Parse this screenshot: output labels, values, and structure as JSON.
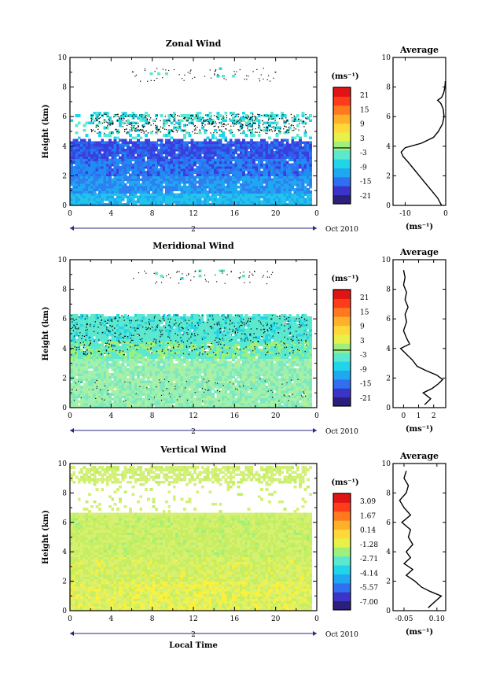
{
  "date_label": "Oct 2010",
  "day_marker": "2",
  "bottom_xlabel": "Local Time",
  "y_label": "Height (km)",
  "units_label": "(ms⁻¹)",
  "chart_data": [
    {
      "type": "heatmap",
      "title": "Zonal Wind",
      "xlabel": "Local Time",
      "ylabel": "Height (km)",
      "x_ticks": [
        "0",
        "4",
        "8",
        "12",
        "16",
        "20",
        "0"
      ],
      "y_ticks": [
        "0",
        "2",
        "4",
        "6",
        "8",
        "10"
      ],
      "xlim": [
        0,
        24
      ],
      "ylim": [
        0,
        10
      ],
      "colorbar_labels": [
        "21",
        "15",
        "9",
        "3",
        "-3",
        "-9",
        "-15",
        "-21"
      ],
      "profile": {
        "title": "Average",
        "xlabel": "(ms⁻¹)",
        "x_ticks": [
          "-10",
          "0"
        ],
        "xlim": [
          -13,
          0
        ],
        "heights": [
          0,
          0.5,
          1,
          1.5,
          2,
          2.5,
          3,
          3.3,
          3.6,
          3.9,
          4.2,
          4.6,
          5,
          5.5,
          6,
          6.5,
          6.9,
          7.1,
          7.3,
          7.6,
          8,
          8.4
        ],
        "values": [
          -1.0,
          -2.0,
          -3.5,
          -5.0,
          -6.5,
          -8.0,
          -9.5,
          -10.5,
          -11.0,
          -10.0,
          -6.0,
          -3.0,
          -1.8,
          -0.8,
          -0.4,
          -0.6,
          -1.2,
          -2.0,
          -1.0,
          -0.5,
          -0.2,
          -0.1
        ]
      }
    },
    {
      "type": "heatmap",
      "title": "Meridional Wind",
      "xlabel": "Local Time",
      "ylabel": "Height (km)",
      "x_ticks": [
        "0",
        "4",
        "8",
        "12",
        "16",
        "20",
        "0"
      ],
      "y_ticks": [
        "0",
        "2",
        "4",
        "6",
        "8",
        "10"
      ],
      "xlim": [
        0,
        24
      ],
      "ylim": [
        0,
        10
      ],
      "colorbar_labels": [
        "21",
        "15",
        "9",
        "3",
        "-3",
        "-9",
        "-15",
        "-21"
      ],
      "profile": {
        "title": "Average",
        "xlabel": "(ms⁻¹)",
        "x_ticks": [
          "0",
          "1",
          "2"
        ],
        "xlim": [
          -0.7,
          2.8
        ],
        "heights": [
          0.2,
          0.6,
          1.0,
          1.3,
          1.6,
          1.9,
          2.2,
          2.5,
          2.8,
          3.2,
          3.6,
          4.0,
          4.3,
          4.7,
          5.2,
          5.8,
          6.3,
          6.8,
          7.3,
          7.8,
          8.3,
          8.8,
          9.3
        ],
        "values": [
          1.4,
          1.8,
          1.3,
          1.9,
          2.3,
          2.6,
          2.2,
          1.5,
          0.9,
          0.6,
          0.2,
          -0.2,
          0.4,
          0.2,
          0.0,
          0.2,
          0.1,
          0.3,
          0.1,
          0.2,
          0.0,
          0.1,
          0.0
        ]
      }
    },
    {
      "type": "heatmap",
      "title": "Vertical Wind",
      "xlabel": "Local Time",
      "ylabel": "Height (km)",
      "x_ticks": [
        "0",
        "4",
        "8",
        "12",
        "16",
        "20",
        "0"
      ],
      "y_ticks": [
        "0",
        "2",
        "4",
        "6",
        "8",
        "10"
      ],
      "xlim": [
        0,
        24
      ],
      "ylim": [
        0,
        10
      ],
      "colorbar_labels": [
        "3.09",
        "1.67",
        "0.14",
        "-1.28",
        "-2.71",
        "-4.14",
        "-5.57",
        "-7.00"
      ],
      "profile": {
        "title": "Average",
        "xlabel": "(ms⁻¹)",
        "x_ticks": [
          "-0.05",
          "0.10"
        ],
        "xlim": [
          -0.1,
          0.14
        ],
        "heights": [
          0.2,
          0.6,
          1.0,
          1.3,
          1.6,
          2.0,
          2.4,
          2.8,
          3.2,
          3.6,
          4.0,
          4.5,
          5.0,
          5.5,
          6.0,
          6.5,
          7.0,
          7.5,
          8.0,
          8.5,
          9.0,
          9.5
        ],
        "values": [
          0.06,
          0.09,
          0.12,
          0.07,
          0.03,
          0.0,
          -0.04,
          -0.01,
          -0.05,
          -0.02,
          -0.04,
          -0.01,
          -0.03,
          -0.02,
          -0.06,
          -0.02,
          -0.05,
          -0.07,
          -0.04,
          -0.03,
          -0.05,
          -0.04
        ]
      }
    }
  ]
}
